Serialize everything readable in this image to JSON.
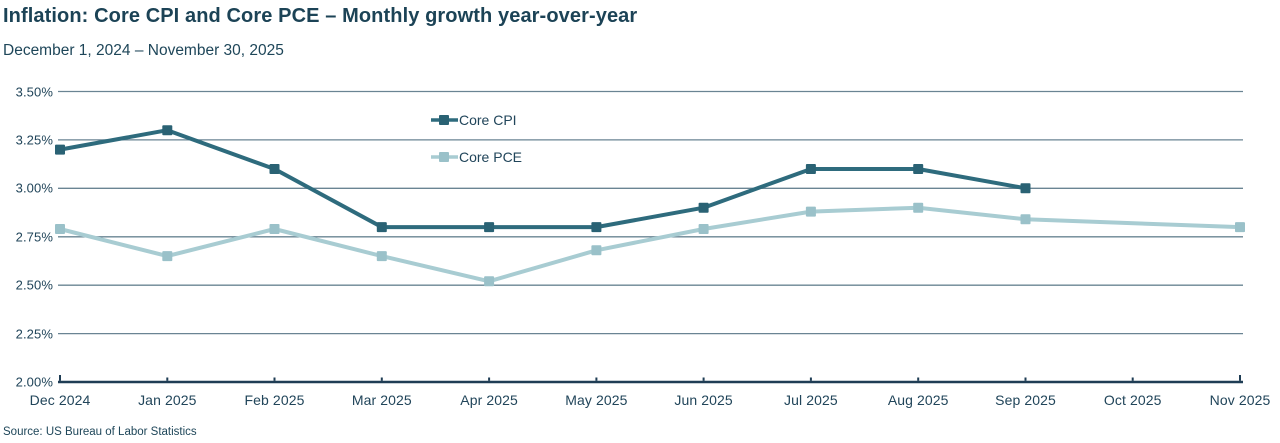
{
  "header": {
    "title": "Inflation: Core CPI and Core PCE – Monthly growth year-over-year",
    "subtitle": "December 1, 2024 – November 30, 2025"
  },
  "source_note": "Source: US Bureau of Labor Statistics",
  "colors": {
    "title_text": "#1c4356",
    "axis_text": "#21455a",
    "gridline": "#6a8493",
    "axis_line": "#1f3d55",
    "core_cpi_line": "#2e6b7d",
    "core_cpi_marker": "#2a6274",
    "core_pce_line": "#a8ccd2",
    "core_pce_marker": "#9ac1c9",
    "background": "#ffffff"
  },
  "chart_data": {
    "type": "line",
    "title": "Inflation: Core CPI and Core PCE – Monthly growth year-over-year",
    "subtitle": "December 1, 2024 – November 30, 2025",
    "unit": "percent year-over-year",
    "categories": [
      "Dec 2024",
      "Jan 2025",
      "Feb 2025",
      "Mar 2025",
      "Apr 2025",
      "May 2025",
      "Jun 2025",
      "Jul 2025",
      "Aug 2025",
      "Sep 2025",
      "Oct 2025",
      "Nov 2025"
    ],
    "ylim": [
      2.0,
      3.5
    ],
    "ytick_step": 0.25,
    "yticks": [
      {
        "value": 2.0,
        "label": "2.00%"
      },
      {
        "value": 2.25,
        "label": "2.25%"
      },
      {
        "value": 2.5,
        "label": "2.50%"
      },
      {
        "value": 2.75,
        "label": "2.75%"
      },
      {
        "value": 3.0,
        "label": "3.00%"
      },
      {
        "value": 3.25,
        "label": "3.25%"
      },
      {
        "value": 3.5,
        "label": "3.50%"
      }
    ],
    "grid": "horizontal",
    "legend_position": "inside-top-left-of-center",
    "series": [
      {
        "name": "Core CPI",
        "color": "#2e6b7d",
        "marker_color": "#2a6274",
        "marker": "square",
        "values": [
          3.2,
          3.3,
          3.1,
          2.8,
          2.8,
          2.8,
          2.9,
          3.1,
          3.1,
          3.0,
          null,
          null
        ]
      },
      {
        "name": "Core PCE",
        "color": "#a8ccd2",
        "marker_color": "#9ac1c9",
        "marker": "square",
        "values": [
          2.79,
          2.65,
          2.79,
          2.65,
          2.52,
          2.68,
          2.79,
          2.88,
          2.9,
          2.84,
          null,
          2.8
        ]
      }
    ]
  }
}
